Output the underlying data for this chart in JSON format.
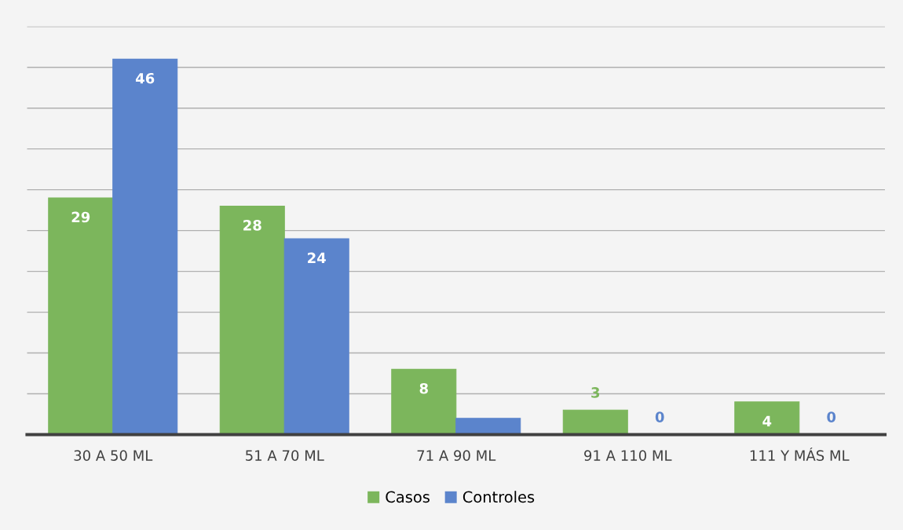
{
  "chart_data": {
    "type": "bar",
    "categories": [
      "30 A 50 ML",
      "51 A 70 ML",
      "71 A 90 ML",
      "91 A 110 ML",
      "111 Y MÁS ML"
    ],
    "series": [
      {
        "name": "Casos",
        "color": "#7cb65c",
        "values": [
          29,
          28,
          8,
          3,
          4
        ],
        "value_labels": [
          "29",
          "28",
          "8",
          "3",
          "4"
        ]
      },
      {
        "name": "Controles",
        "color": "#5b84cc",
        "values": [
          46,
          24,
          2,
          0,
          0
        ],
        "value_labels": [
          "46",
          "24",
          null,
          "0",
          "0"
        ]
      }
    ],
    "ylim": [
      0,
      50
    ],
    "yticks": [
      {
        "value": 0,
        "label": null
      },
      {
        "value": 5,
        "label": null
      },
      {
        "value": 10,
        "label": null
      },
      {
        "value": 15,
        "label": null
      },
      {
        "value": 20,
        "label": null
      },
      {
        "value": 25,
        "label": null
      },
      {
        "value": 30,
        "label": null
      },
      {
        "value": 35,
        "label": null
      },
      {
        "value": 40,
        "label": null
      },
      {
        "value": 45,
        "label": null
      },
      {
        "value": 50,
        "label": null
      }
    ],
    "tick_labels": "x",
    "grid": "y",
    "legend": "bottom"
  }
}
